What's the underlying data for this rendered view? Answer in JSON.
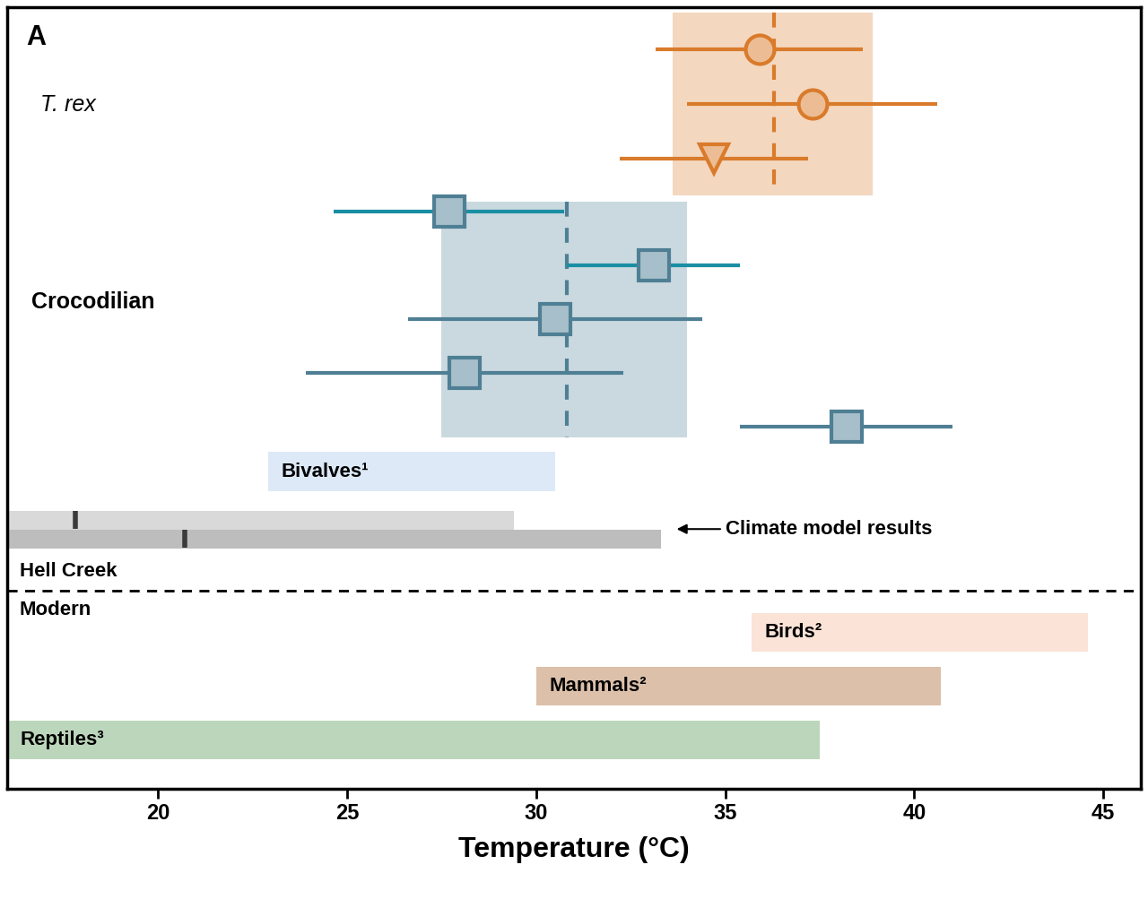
{
  "chart_data": {
    "type": "interval",
    "panel_label": "A",
    "xlabel": "Temperature (°C)",
    "xlim": [
      16,
      46
    ],
    "xticks": [
      20,
      25,
      30,
      35,
      40,
      45
    ],
    "tick_labels": "x",
    "groups": [
      {
        "name": "T. rex",
        "color": "#d97b2b",
        "mean": 36.3,
        "range": [
          33.6,
          38.9
        ],
        "points": [
          {
            "value": 35.9,
            "error": 2.75,
            "marker": "circle"
          },
          {
            "value": 37.3,
            "error": 3.3,
            "marker": "circle"
          },
          {
            "value": 34.7,
            "error": 2.5,
            "marker": "triangle"
          }
        ]
      },
      {
        "name": "Crocodilian",
        "color": "#4f7f94",
        "mean": 30.8,
        "range": [
          27.5,
          34.0
        ],
        "points": [
          {
            "value": 27.7,
            "error": 3.05,
            "marker": "square",
            "color": "#1a8fa3"
          },
          {
            "value": 33.1,
            "error": 2.3,
            "marker": "square",
            "color": "#1a8fa3"
          },
          {
            "value": 30.5,
            "error": 3.9,
            "marker": "square"
          },
          {
            "value": 28.1,
            "error": 4.2,
            "marker": "square"
          },
          {
            "value": 38.2,
            "error": 2.8,
            "marker": "square"
          }
        ]
      }
    ],
    "hell_creek": {
      "name": "Hell Creek",
      "ranges": [
        {
          "name": "Bivalves¹",
          "values": [
            22.9,
            30.5
          ],
          "color": "#dde9f7"
        }
      ],
      "model": {
        "label": "Climate model results",
        "series": [
          {
            "values": [
              16,
              29.4
            ],
            "mark": 17.8,
            "color": "#d9d9d9"
          },
          {
            "values": [
              16,
              33.3
            ],
            "mark": 20.7,
            "color": "#bdbdbd"
          }
        ]
      }
    },
    "modern": {
      "name": "Modern",
      "ranges": [
        {
          "name": "Birds²",
          "values": [
            35.7,
            44.6
          ],
          "color": "#fbe3d7"
        },
        {
          "name": "Mammals²",
          "values": [
            30.0,
            40.7
          ],
          "color": "#dcc0aa"
        },
        {
          "name": "Reptiles³",
          "values": [
            16,
            37.5
          ],
          "color": "#bcd6bb"
        }
      ]
    }
  }
}
